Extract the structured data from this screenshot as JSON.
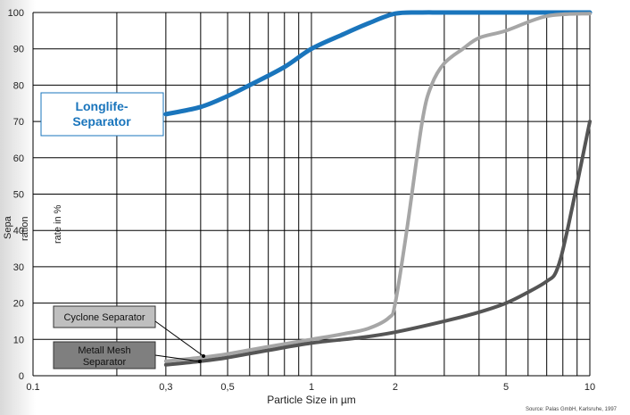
{
  "chart_data": {
    "type": "line",
    "title": "",
    "xlabel": "Particle Size in µm",
    "ylabel_parts": [
      "Sepa",
      "ration",
      "rate in %"
    ],
    "x_scale": "log",
    "xlim": [
      0.1,
      10
    ],
    "ylim": [
      0,
      100
    ],
    "grid": true,
    "x_ticks": [
      {
        "value": 0.1,
        "label": "0.1"
      },
      {
        "value": 0.3,
        "label": "0,3"
      },
      {
        "value": 0.5,
        "label": "0,5"
      },
      {
        "value": 1,
        "label": "1"
      },
      {
        "value": 2,
        "label": "2"
      },
      {
        "value": 5,
        "label": "5"
      },
      {
        "value": 10,
        "label": "10"
      }
    ],
    "y_ticks": [
      0,
      10,
      20,
      30,
      40,
      50,
      60,
      70,
      80,
      90,
      100
    ],
    "series": [
      {
        "name": "Longlife-Separator",
        "color": "#1a75bc",
        "x": [
          0.3,
          0.4,
          0.5,
          0.6,
          0.8,
          1.0,
          1.3,
          1.6,
          2.0,
          2.5,
          3,
          5,
          10
        ],
        "y": [
          72,
          74,
          77,
          80,
          85,
          90,
          94,
          97,
          99.7,
          100,
          100,
          100,
          100
        ]
      },
      {
        "name": "Cyclone Separator",
        "color": "#a6a6a6",
        "x": [
          0.3,
          0.4,
          0.5,
          0.7,
          1.0,
          1.3,
          1.6,
          1.9,
          2.0,
          2.2,
          2.5,
          2.7,
          3.0,
          3.5,
          4.0,
          5.0,
          7.0,
          10
        ],
        "y": [
          4,
          5,
          6,
          8,
          10,
          11.5,
          13,
          16,
          20,
          40,
          70,
          80,
          86,
          90,
          93,
          95,
          99,
          99.7
        ]
      },
      {
        "name": "Metall Mesh Separator",
        "color": "#555555",
        "x": [
          0.3,
          0.4,
          0.5,
          0.7,
          1.0,
          1.5,
          2.0,
          3.0,
          4.0,
          5.0,
          6.0,
          7.0,
          7.6,
          8.3,
          10
        ],
        "y": [
          3,
          4,
          5,
          7,
          9,
          10.5,
          12,
          15,
          17.5,
          20,
          23,
          26,
          29,
          40,
          70
        ]
      }
    ],
    "annotations": {
      "longlife": "Longlife-\nSeparator",
      "cyclone": "Cyclone Separator",
      "mesh": "Metall Mesh\nSeparator"
    },
    "source": "Source: Palas GmbH, Karlsruhe, 1997"
  }
}
